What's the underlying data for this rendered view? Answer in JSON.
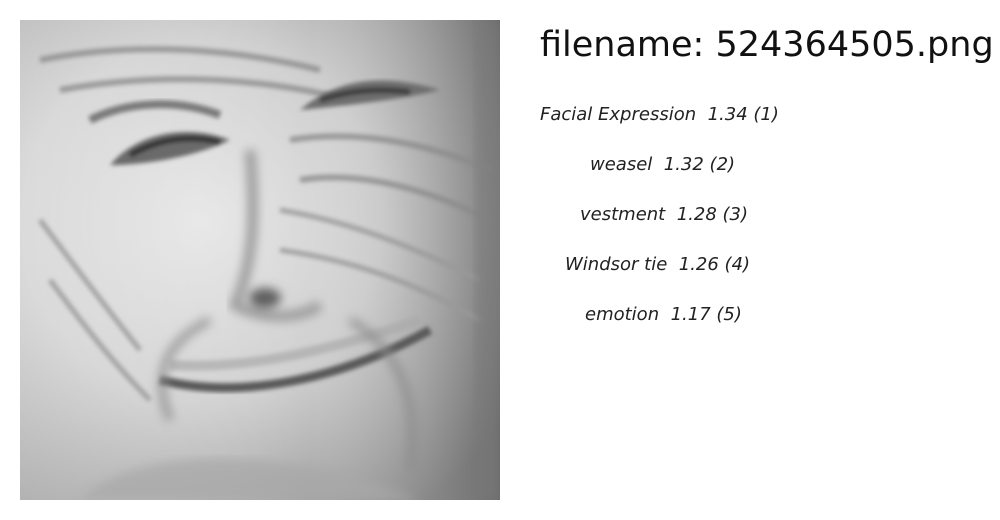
{
  "header": {
    "filename_label": "filename:",
    "filename_value": "524364505.png"
  },
  "image": {
    "subject_icon": "grayscale-face-photo-icon"
  },
  "predictions": [
    {
      "label": "Facial Expression",
      "score": "1.34",
      "rank": "(1)"
    },
    {
      "label": "weasel",
      "score": "1.32",
      "rank": "(2)"
    },
    {
      "label": "vestment",
      "score": "1.28",
      "rank": "(3)"
    },
    {
      "label": "Windsor tie",
      "score": "1.26",
      "rank": "(4)"
    },
    {
      "label": "emotion",
      "score": "1.17",
      "rank": "(5)"
    }
  ]
}
